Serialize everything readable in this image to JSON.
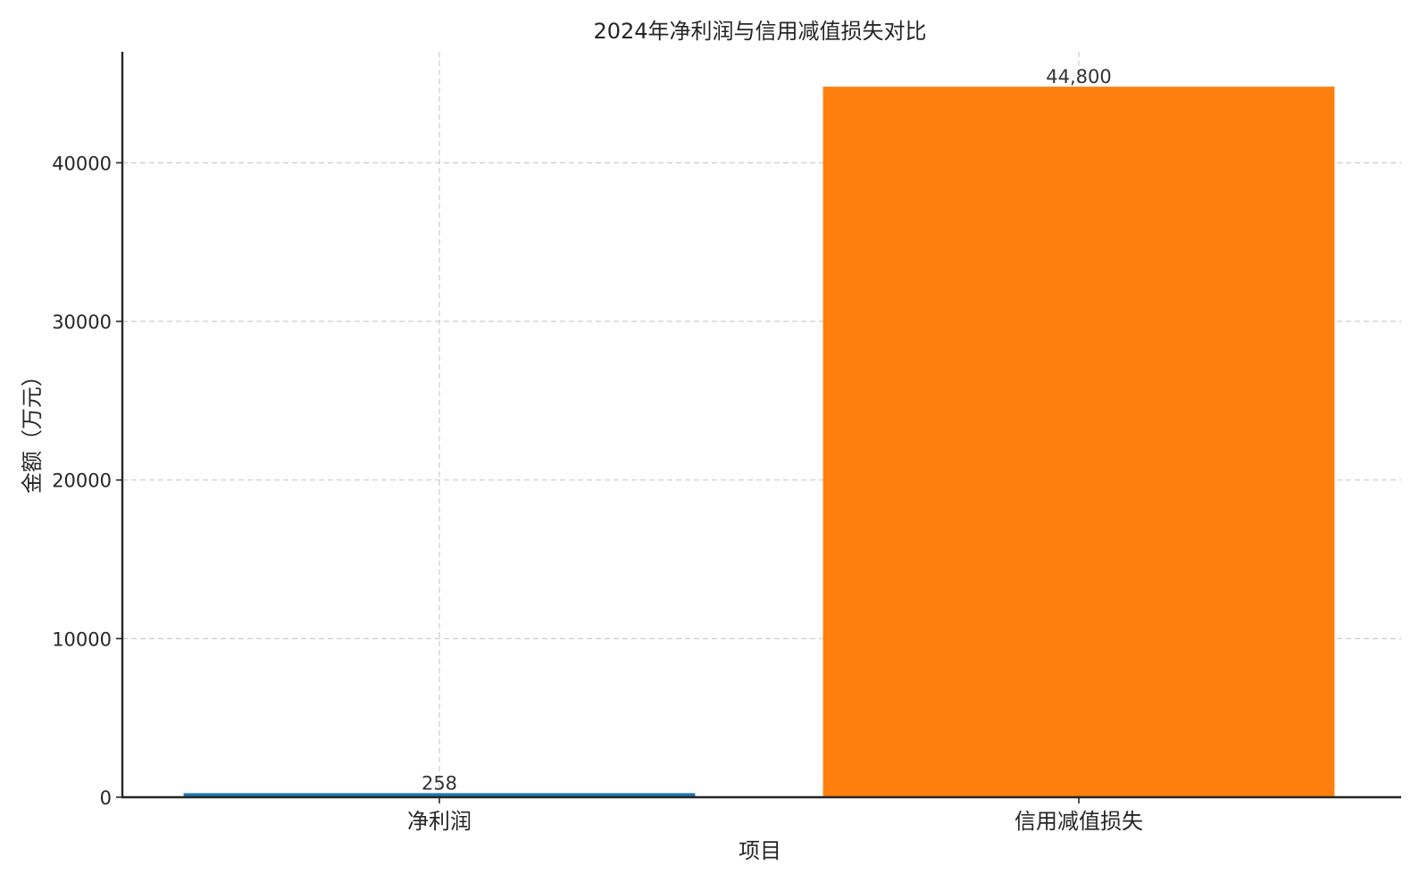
{
  "chart_data": {
    "type": "bar",
    "title": "2024年净利润与信用减值损失对比",
    "xlabel": "项目",
    "ylabel": "金额（万元）",
    "categories": [
      "净利润",
      "信用减值损失"
    ],
    "values": [
      258,
      44800
    ],
    "value_labels": [
      "258",
      "44,800"
    ],
    "colors": [
      "#1f77b4",
      "#ff7f0e"
    ],
    "ylim": [
      0,
      47000
    ],
    "yticks": [
      0,
      10000,
      20000,
      30000,
      40000
    ],
    "ytick_labels": [
      "0",
      "10000",
      "20000",
      "30000",
      "40000"
    ],
    "grid": true
  }
}
